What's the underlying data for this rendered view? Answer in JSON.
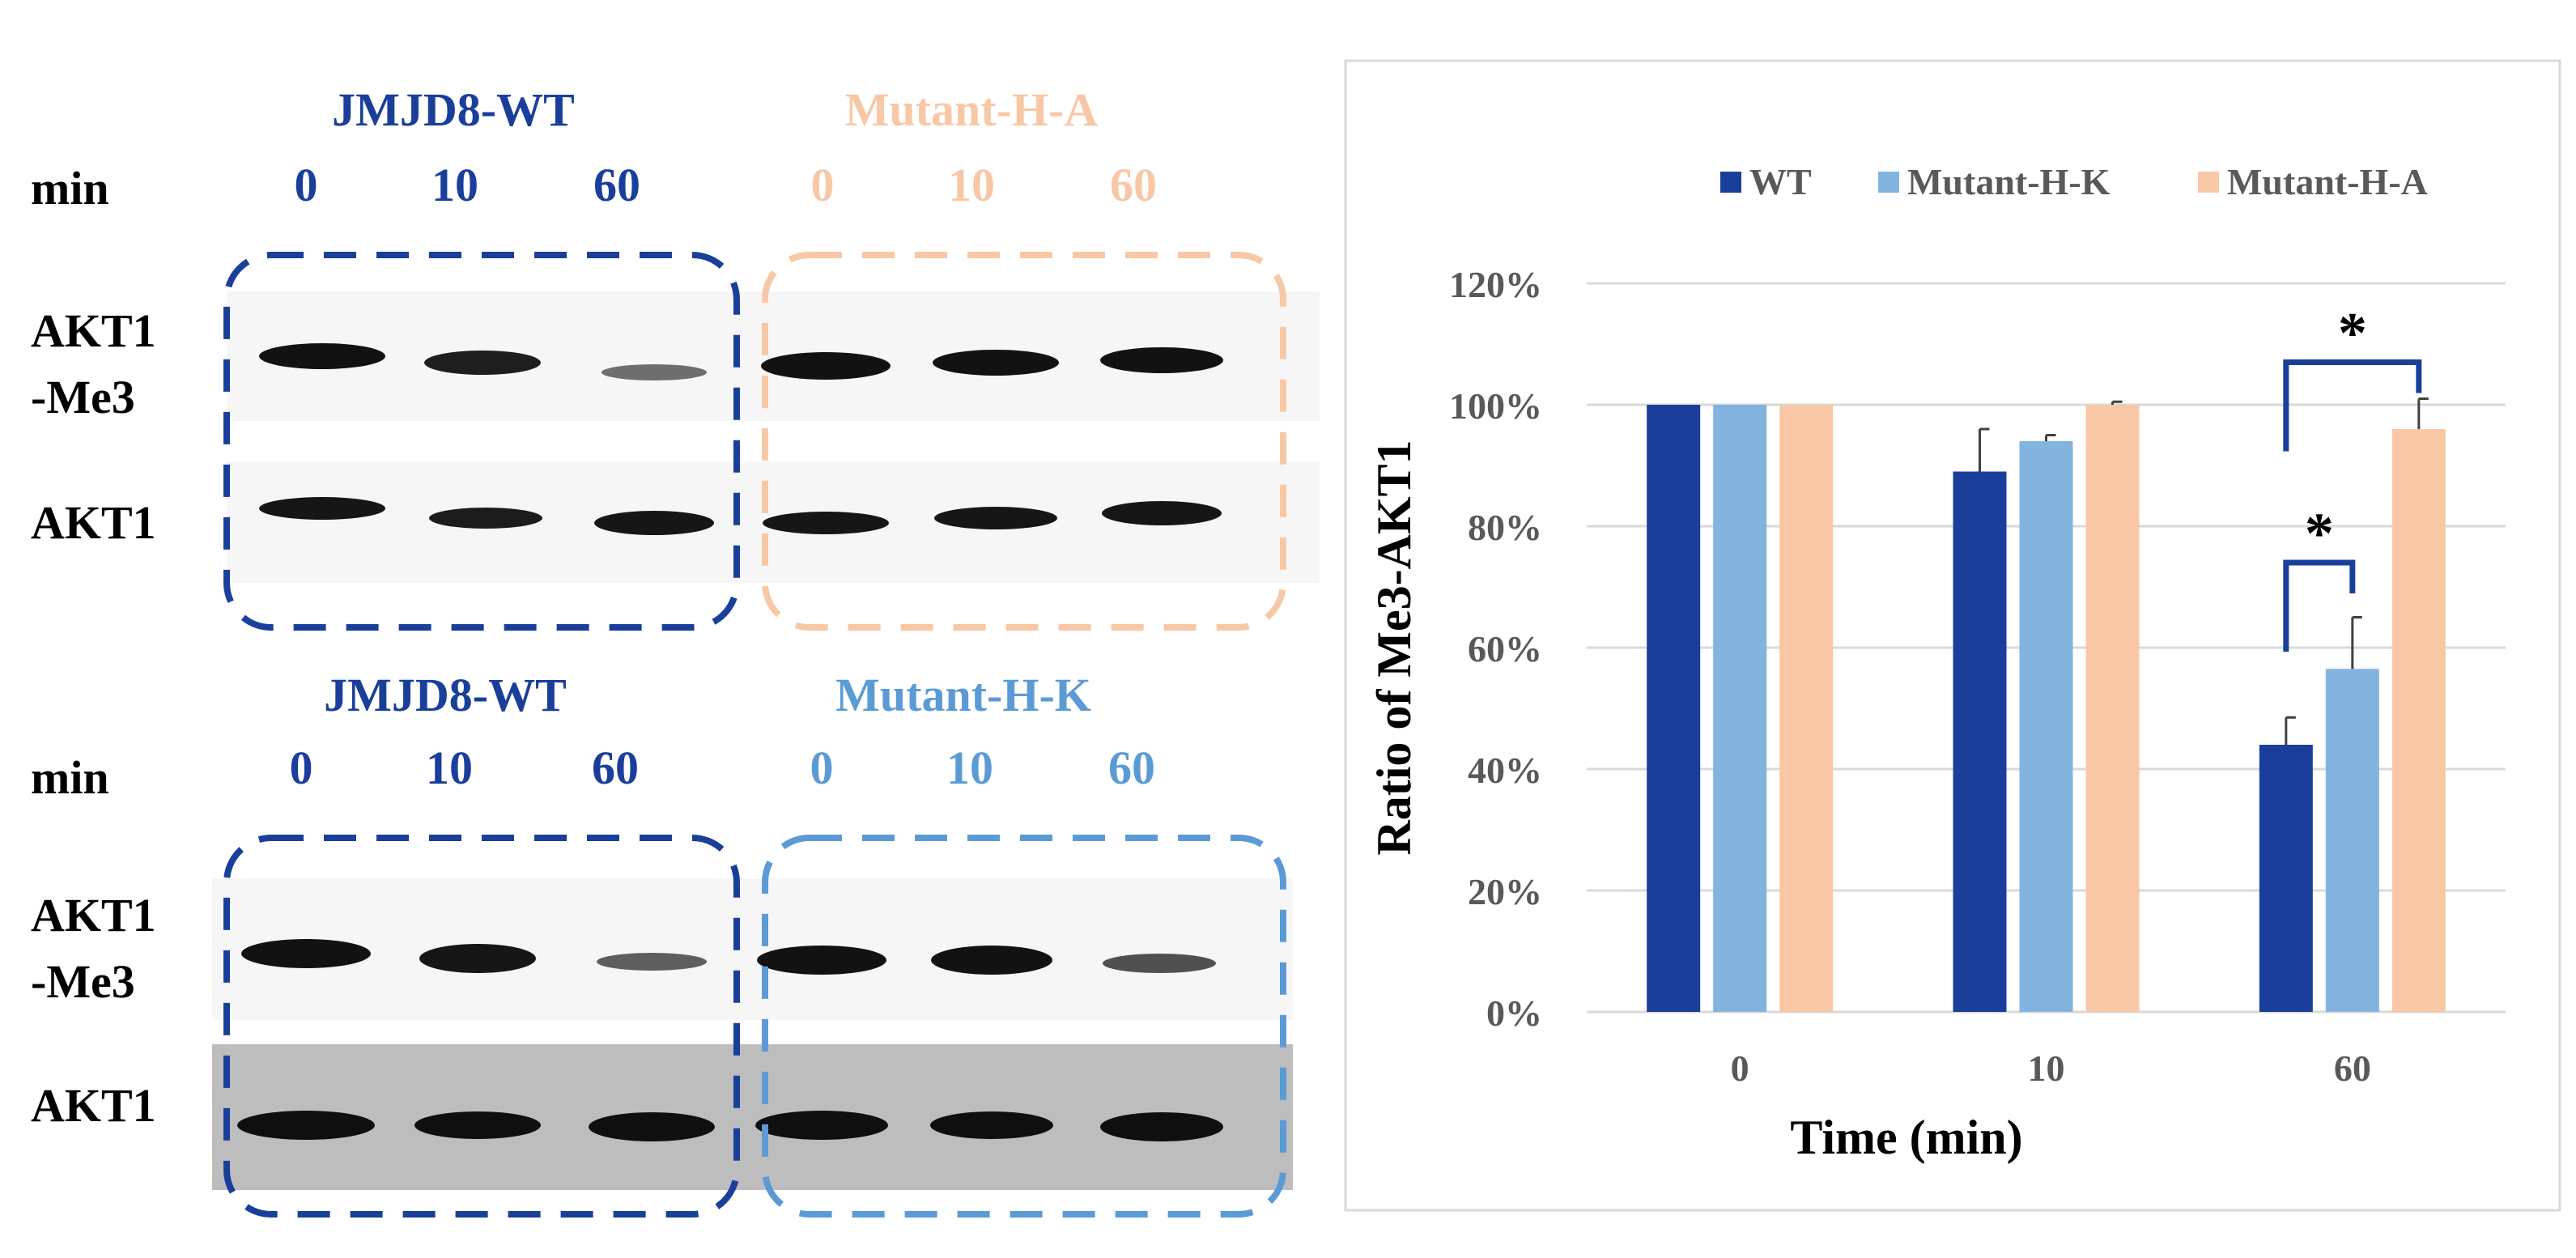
{
  "colors": {
    "wt": "#1a3f9b",
    "mutant_hk": "#82b4df",
    "mutant_ha": "#f8c8a6",
    "grid": "#d9d9d9",
    "axis_text": "#595959",
    "blot_light": "#f6f6f6",
    "blot_grey": "#bdbdbd",
    "band": "#121212",
    "bracket": "#1a3f9b"
  },
  "blots": {
    "top": {
      "group1_label": "JMJD8-WT",
      "group2_label": "Mutant-H-A",
      "min_label": "min",
      "group1_times": [
        "0",
        "10",
        "60"
      ],
      "group2_times": [
        "0",
        "10",
        "60"
      ],
      "row1_label_line1": "AKT1",
      "row1_label_line2": "-Me3",
      "row2_label": "AKT1"
    },
    "bottom": {
      "group1_label": "JMJD8-WT",
      "group2_label": "Mutant-H-K",
      "min_label": "min",
      "group1_times": [
        "0",
        "10",
        "60"
      ],
      "group2_times": [
        "0",
        "10",
        "60"
      ],
      "row1_label_line1": "AKT1",
      "row1_label_line2": "-Me3",
      "row2_label": "AKT1"
    }
  },
  "chart_data": {
    "type": "bar",
    "xlabel": "Time (min)",
    "ylabel": "Ratio of Me3-AKT1",
    "categories": [
      "0",
      "10",
      "60"
    ],
    "ylim": [
      0,
      1.2
    ],
    "yticks": [
      0,
      0.2,
      0.4,
      0.6,
      0.8,
      1.0,
      1.2
    ],
    "ytick_labels": [
      "0%",
      "20%",
      "40%",
      "60%",
      "80%",
      "100%",
      "120%"
    ],
    "grid": true,
    "legend_position": "top",
    "series": [
      {
        "name": "WT",
        "values": [
          1.0,
          0.89,
          0.44
        ],
        "errors": [
          0.0,
          0.07,
          0.045
        ]
      },
      {
        "name": "Mutant-H-K",
        "values": [
          1.0,
          0.94,
          0.565
        ],
        "errors": [
          0.0,
          0.01,
          0.085
        ]
      },
      {
        "name": "Mutant-H-A",
        "values": [
          1.0,
          1.0,
          0.96
        ],
        "errors": [
          0.0,
          0.005,
          0.05
        ]
      }
    ],
    "annotations": [
      {
        "text": "*",
        "category": "60",
        "from_series": "WT",
        "to_series": "Mutant-H-K",
        "y": 0.74
      },
      {
        "text": "*",
        "category": "60",
        "from_series": "WT",
        "to_series": "Mutant-H-A",
        "y": 1.07
      }
    ]
  }
}
